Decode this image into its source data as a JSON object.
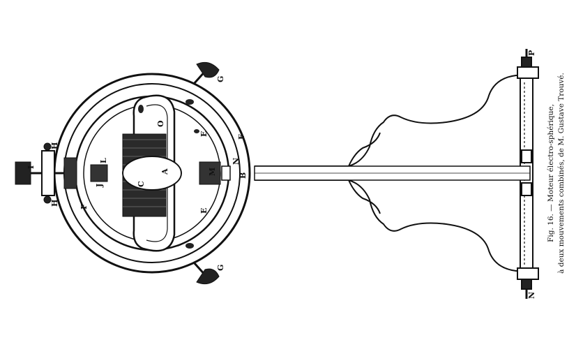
{
  "figure": {
    "caption_line1": "Fig. 16. — Moteur électro-sphérique,",
    "caption_line2": "à deux mouvements combinés, de M. Gustave Trouvé."
  },
  "labels": {
    "A": "A",
    "C": "C",
    "B": "B",
    "E_top": "E",
    "E_bottom": "E",
    "F_top": "F",
    "F_bottom": "F",
    "G_top": "G",
    "G_bottom": "G",
    "H_top": "H",
    "H_bottom": "H",
    "I": "I",
    "J": "J",
    "L": "L",
    "M": "M",
    "N_axis": "N",
    "N_base": "N",
    "P": "P",
    "O": "O"
  },
  "colors": {
    "ink": "#111111",
    "paper": "#ffffff"
  }
}
